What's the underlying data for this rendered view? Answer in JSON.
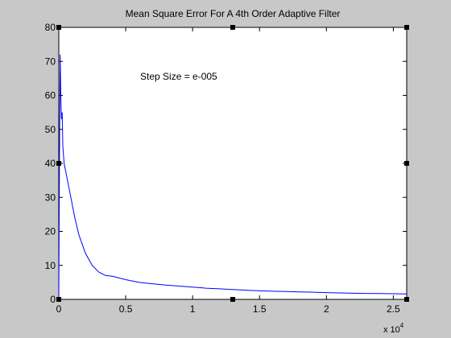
{
  "chart_data": {
    "type": "line",
    "title": "Mean Square Error For A 4th Order Adaptive Filter",
    "annotation": "Step Size = e-005",
    "xlabel": "",
    "ylabel": "",
    "x_exponent_label": "x 10",
    "x_exponent_power": "4",
    "xlim": [
      0,
      2.6
    ],
    "ylim": [
      0,
      80
    ],
    "grid": false,
    "x_ticks": [
      {
        "value": 0,
        "label": "0"
      },
      {
        "value": 0.5,
        "label": "0.5"
      },
      {
        "value": 1,
        "label": "1"
      },
      {
        "value": 1.5,
        "label": "1.5"
      },
      {
        "value": 2,
        "label": "2"
      },
      {
        "value": 2.5,
        "label": "2.5"
      }
    ],
    "y_ticks": [
      {
        "value": 0,
        "label": "0"
      },
      {
        "value": 10,
        "label": "10"
      },
      {
        "value": 20,
        "label": "20"
      },
      {
        "value": 30,
        "label": "30"
      },
      {
        "value": 40,
        "label": "40"
      },
      {
        "value": 50,
        "label": "50"
      },
      {
        "value": 60,
        "label": "60"
      },
      {
        "value": 70,
        "label": "70"
      },
      {
        "value": 80,
        "label": "80"
      }
    ],
    "line_color": "#0000ff",
    "series": [
      {
        "x": [
          0,
          0.005,
          0.01,
          0.015,
          0.02,
          0.025,
          0.03,
          0.04,
          0.05,
          0.06,
          0.07,
          0.08,
          0.1,
          0.12,
          0.15,
          0.2,
          0.25,
          0.3,
          0.35,
          0.4,
          0.5,
          0.6,
          0.7,
          0.8,
          0.9,
          1.0,
          1.1,
          1.2,
          1.3,
          1.4,
          1.5,
          1.6,
          1.7,
          1.8,
          1.9,
          2.0,
          2.1,
          2.2,
          2.3,
          2.4,
          2.5,
          2.6
        ],
        "y": [
          0,
          40,
          72,
          60,
          53,
          55,
          45,
          40,
          38,
          36,
          34,
          32,
          28,
          24,
          19,
          13.5,
          10,
          8,
          7,
          6.8,
          5.8,
          5,
          4.6,
          4.2,
          3.9,
          3.6,
          3.3,
          3.1,
          2.9,
          2.7,
          2.5,
          2.4,
          2.3,
          2.2,
          2.1,
          2.0,
          1.9,
          1.8,
          1.75,
          1.7,
          1.65,
          1.6
        ]
      }
    ]
  }
}
